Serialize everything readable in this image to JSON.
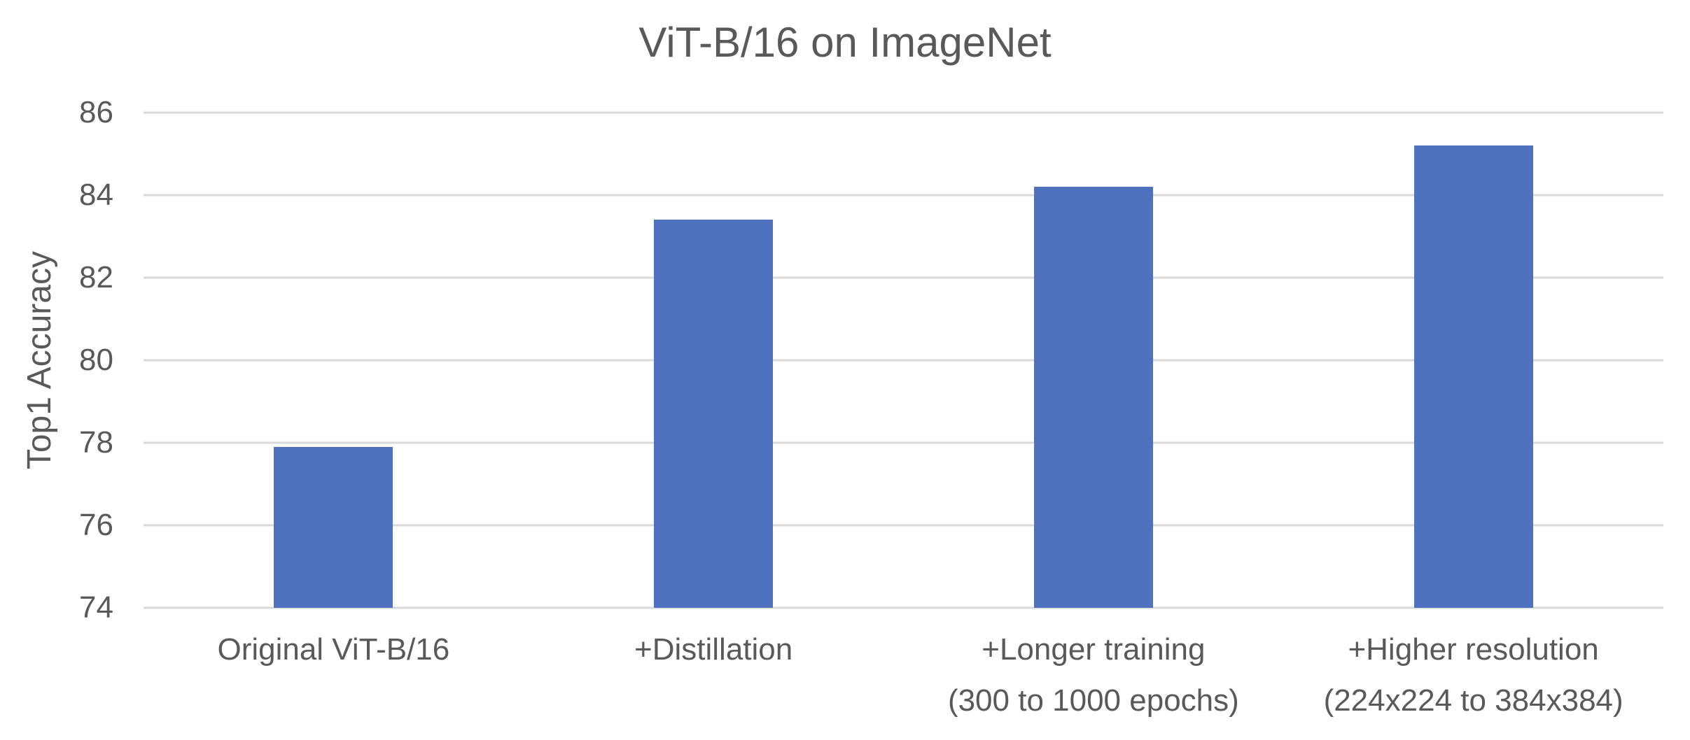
{
  "chart_data": {
    "type": "bar",
    "title": "ViT-B/16 on ImageNet",
    "ylabel": "Top1 Accuracy",
    "xlabel": "",
    "categories": [
      "Original ViT-B/16",
      "+Distillation",
      "+Longer training (300 to 1000 epochs)",
      "+Higher resolution (224x224 to 384x384)"
    ],
    "category_lines": [
      [
        "Original ViT-B/16"
      ],
      [
        "+Distillation"
      ],
      [
        "+Longer training",
        "(300 to 1000 epochs)"
      ],
      [
        "+Higher resolution",
        "(224x224 to 384x384)"
      ]
    ],
    "values": [
      77.9,
      83.4,
      84.2,
      85.2
    ],
    "ylim": [
      74,
      86
    ],
    "yticks": [
      74,
      76,
      78,
      80,
      82,
      84,
      86
    ],
    "grid": "horizontal",
    "legend": "none",
    "colors": {
      "bar": "#4E72BD",
      "gridline": "#D9D9D9",
      "text": "#595959",
      "background": "#FFFFFF"
    }
  }
}
